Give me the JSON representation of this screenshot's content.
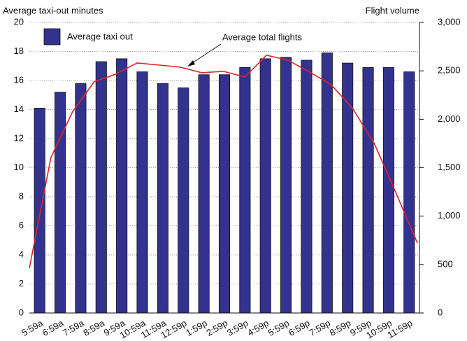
{
  "chart_data": {
    "type": "bar-line",
    "y_axis_label": "Average taxi-out minutes",
    "y2_axis_label": "Flight volume",
    "annotation": "Average total flights",
    "categories": [
      "5:59a",
      "6:59a",
      "7:59a",
      "8:59a",
      "9:59a",
      "10:59a",
      "11:59a",
      "12:59p",
      "1:59p",
      "2:59p",
      "3:59p",
      "4:59p",
      "5:59p",
      "6:59p",
      "7:59p",
      "8:59p",
      "9:59p",
      "10:59p",
      "11:59p"
    ],
    "series": [
      {
        "name": "Average taxi out",
        "type": "bar",
        "color": "#33338f",
        "values": [
          14.1,
          15.2,
          15.8,
          17.3,
          17.5,
          16.6,
          15.8,
          15.5,
          16.4,
          16.4,
          16.9,
          17.5,
          17.6,
          17.4,
          17.9,
          17.2,
          16.9,
          16.9,
          16.6
        ]
      },
      {
        "name": "Average total flights",
        "type": "line",
        "axis": "y2",
        "color": "#e32228",
        "values": [
          463,
          1605,
          2075,
          2386,
          2466,
          2581,
          2560,
          2538,
          2480,
          2495,
          2437,
          2661,
          2610,
          2487,
          2357,
          2111,
          1750,
          1244,
          723
        ]
      }
    ],
    "ylim": [
      0,
      20
    ],
    "yticks": [
      0,
      2,
      4,
      6,
      8,
      10,
      12,
      14,
      16,
      18,
      20
    ],
    "y2lim": [
      0,
      3000
    ],
    "y2ticks": [
      0,
      500,
      {
        "value": 1000,
        "label": "1,000"
      },
      {
        "value": 1500,
        "label": "1,500"
      },
      {
        "value": 2000,
        "label": "2,000"
      },
      {
        "value": 2500,
        "label": "2,500"
      },
      {
        "value": 3000,
        "label": "3,000"
      }
    ],
    "grid": true
  }
}
